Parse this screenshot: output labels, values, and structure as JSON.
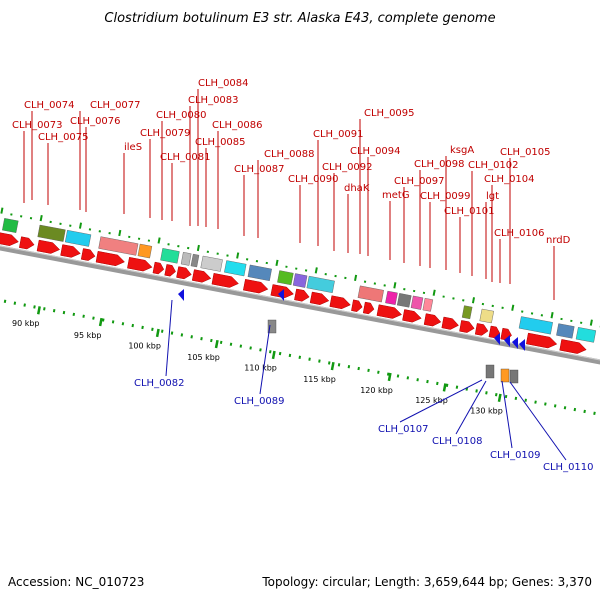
{
  "title": "Clostridium botulinum E3 str. Alaska E43, complete genome",
  "footer": {
    "accession": "Accession: NC_010723",
    "topology": "Topology: circular; Length: 3,659,644 bp; Genes: 3,370"
  },
  "colors": {
    "forward_gene": "#ee1111",
    "reverse_gene": "#1111dd",
    "forward_label": "#c00000",
    "reverse_label": "#1010b0",
    "tick": "#119911",
    "backbone": "#999999"
  },
  "forward_labels": [
    "CLH_0074",
    "CLH_0073",
    "CLH_0075",
    "CLH_0077",
    "CLH_0076",
    "ileS",
    "CLH_0079",
    "CLH_0080",
    "CLH_0084",
    "CLH_0083",
    "CLH_0081",
    "CLH_0085",
    "CLH_0086",
    "CLH_0088",
    "CLH_0087",
    "CLH_0091",
    "CLH_0090",
    "CLH_0092",
    "dhaK",
    "CLH_0095",
    "CLH_0094",
    "metG",
    "CLH_0098",
    "CLH_0097",
    "ksgA",
    "CLH_0099",
    "CLH_0101",
    "CLH_0102",
    "lgt",
    "CLH_0105",
    "CLH_0104",
    "CLH_0106",
    "nrdD"
  ],
  "reverse_labels": [
    "CLH_0082",
    "CLH_0089",
    "CLH_0107",
    "CLH_0108",
    "CLH_0109",
    "CLH_0110"
  ],
  "ticks": [
    "90 kbp",
    "95 kbp",
    "100 kbp",
    "105 kbp",
    "110 kbp",
    "115 kbp",
    "120 kbp",
    "125 kbp",
    "130 kbp"
  ],
  "icons": [
    "forward-gene-arrow",
    "reverse-gene-arrow",
    "cog-color-box"
  ]
}
